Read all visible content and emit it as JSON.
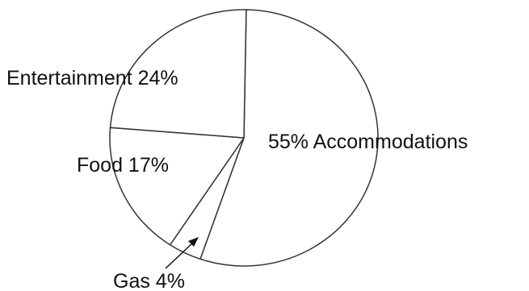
{
  "chart_data": {
    "type": "pie",
    "title": "",
    "slices": [
      {
        "name": "Accommodations",
        "value": 55,
        "label": "55% Accommodations"
      },
      {
        "name": "Gas",
        "value": 4,
        "label": "Gas 4%"
      },
      {
        "name": "Food",
        "value": 17,
        "label": "Food 17%"
      },
      {
        "name": "Entertainment",
        "value": 24,
        "label": "Entertainment 24%"
      }
    ],
    "stroke_color": "#333333",
    "fill_color": "#ffffff",
    "text_color": "#111111",
    "legend": "none"
  }
}
